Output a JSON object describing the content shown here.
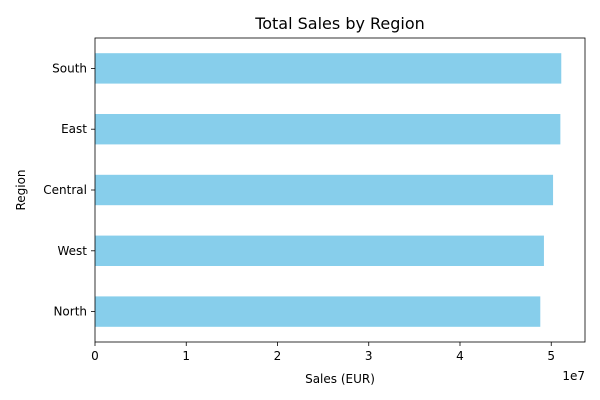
{
  "chart_data": {
    "type": "bar",
    "orientation": "horizontal",
    "title": "Total Sales by Region",
    "xlabel": "Sales (EUR)",
    "ylabel": "Region",
    "categories": [
      "North",
      "West",
      "Central",
      "East",
      "South"
    ],
    "values": [
      48800000,
      49200000,
      50200000,
      51000000,
      51100000
    ],
    "xlim": [
      0,
      53700000
    ],
    "x_ticks": [
      0,
      10000000,
      20000000,
      30000000,
      40000000,
      50000000
    ],
    "x_tick_labels": [
      "0",
      "1",
      "2",
      "3",
      "4",
      "5"
    ],
    "x_offset_label": "1e7",
    "bar_color": "#87ceeb",
    "grid": false,
    "legend": "none"
  }
}
